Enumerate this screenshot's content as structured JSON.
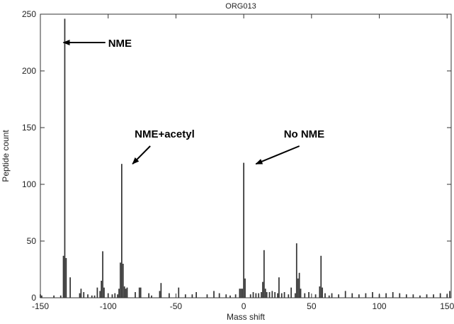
{
  "chart_data": {
    "type": "bar",
    "title": "ORG013",
    "xlabel": "Mass shift",
    "ylabel": "Peptide count",
    "xlim": [
      -150,
      153
    ],
    "ylim": [
      0,
      250
    ],
    "xticks": [
      -150,
      -100,
      -50,
      0,
      50,
      100,
      150
    ],
    "yticks": [
      0,
      50,
      100,
      150,
      200,
      250
    ],
    "grid": false,
    "bar_color": "#333333",
    "x": [
      -150,
      -149,
      -140,
      -135,
      -133,
      -132,
      -131,
      -128,
      -121,
      -120,
      -118,
      -115,
      -112,
      -110,
      -108,
      -106,
      -105,
      -104,
      -103,
      -100,
      -97,
      -95,
      -93,
      -92,
      -91,
      -90,
      -89,
      -88,
      -87,
      -86,
      -80,
      -77,
      -76,
      -70,
      -68,
      -62,
      -61,
      -55,
      -48,
      -43,
      -38,
      -35,
      -27,
      -22,
      -18,
      -13,
      -10,
      -6,
      -3,
      -2,
      -1,
      0,
      1,
      5,
      7,
      9,
      11,
      13,
      14,
      15,
      16,
      17,
      19,
      21,
      23,
      25,
      26,
      28,
      30,
      33,
      35,
      38,
      39,
      40,
      41,
      42,
      45,
      48,
      53,
      56,
      57,
      58,
      60,
      63,
      65,
      70,
      75,
      80,
      85,
      90,
      95,
      100,
      105,
      110,
      115,
      120,
      125,
      130,
      135,
      140,
      145,
      150,
      152
    ],
    "values": [
      3,
      2,
      2,
      2,
      37,
      246,
      35,
      18,
      4,
      8,
      5,
      3,
      2,
      2,
      9,
      6,
      15,
      41,
      9,
      4,
      3,
      4,
      3,
      8,
      31,
      118,
      30,
      10,
      8,
      9,
      5,
      9,
      9,
      4,
      2,
      6,
      13,
      4,
      9,
      3,
      3,
      5,
      3,
      6,
      4,
      3,
      2,
      3,
      8,
      8,
      8,
      119,
      17,
      3,
      5,
      4,
      4,
      5,
      14,
      42,
      8,
      5,
      5,
      6,
      5,
      4,
      18,
      4,
      5,
      3,
      9,
      4,
      48,
      17,
      22,
      8,
      4,
      5,
      3,
      10,
      37,
      9,
      4,
      2,
      4,
      3,
      6,
      4,
      3,
      4,
      5,
      3,
      4,
      5,
      4,
      3,
      3,
      2,
      3,
      3,
      4,
      3,
      6
    ],
    "annotations": [
      {
        "text": "NME",
        "x": -133,
        "y": 225,
        "text_x": -100,
        "text_y": 225
      },
      {
        "text": "NME+acetyl",
        "x": -82,
        "y": 118,
        "text_x": -70,
        "text_y": 140
      },
      {
        "text": "No NME",
        "x": 9,
        "y": 118,
        "text_x": 40,
        "text_y": 140
      }
    ]
  }
}
